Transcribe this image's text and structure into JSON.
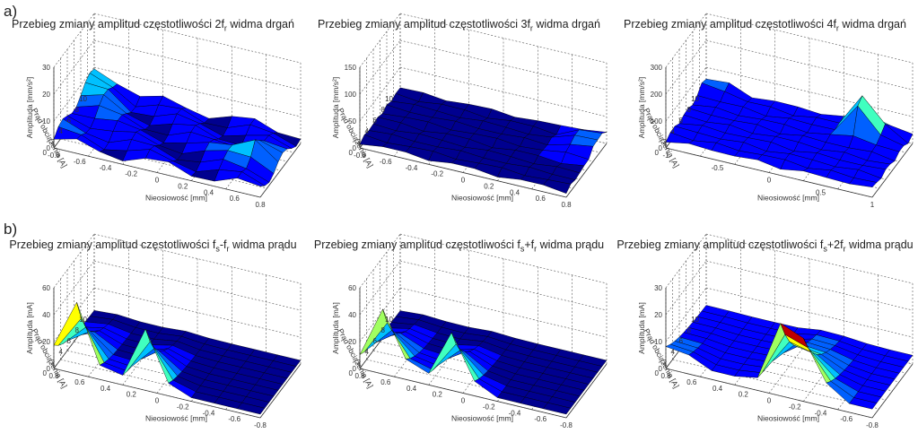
{
  "section_labels": {
    "a": "a)",
    "b": "b)"
  },
  "panels": [
    {
      "row": "a",
      "title_pre": "Przebieg zmiany amplitud częstotliwości 2f",
      "title_sub": "r",
      "title_post": " widma drgań",
      "zlabel": "Amplituda [mm/s²]",
      "xlabel": "Nieosiowość [mm]",
      "ylabel": "Prąd obciążenia [A]",
      "zticks": [
        "0",
        "10",
        "20",
        "30"
      ],
      "xticks": [
        "-0.8",
        "-0.6",
        "-0.4",
        "-0.2",
        "0",
        "0.2",
        "0.4",
        "0.6",
        "0.8"
      ],
      "yticks": [
        "0",
        "2",
        "4",
        "6",
        "8",
        "10"
      ]
    },
    {
      "row": "a",
      "title_pre": "Przebieg zmiany amplitud częstotliwości 3f",
      "title_sub": "r",
      "title_post": " widma drgań",
      "zlabel": "Amplituda [mm/s²]",
      "xlabel": "Nieosiowość [mm]",
      "ylabel": "Prąd obciążenia [A]",
      "zticks": [
        "0",
        "50",
        "100",
        "150"
      ],
      "xticks": [
        "-0.8",
        "-0.6",
        "-0.4",
        "-0.2",
        "0",
        "0.2",
        "0.4",
        "0.6",
        "0.8"
      ],
      "yticks": [
        "0",
        "2",
        "4",
        "6",
        "8",
        "10"
      ]
    },
    {
      "row": "a",
      "title_pre": "Przebieg zmiany amplitud częstotliwości 4f",
      "title_sub": "r",
      "title_post": " widma drgań",
      "zlabel": "Amplituda [mm/s²]",
      "xlabel": "Nieosiowość [mm]",
      "ylabel": "Prąd obciążenia [A]",
      "zticks": [
        "0",
        "100",
        "200",
        "300"
      ],
      "xticks": [
        "-1",
        "-0.5",
        "0",
        "0.5",
        "1"
      ],
      "yticks": [
        "0",
        "2",
        "4",
        "6",
        "8",
        "10"
      ]
    },
    {
      "row": "b",
      "title_pre": "Przebieg zmiany amplitud częstotliwości f",
      "title_sub": "s",
      "title_post": "-f",
      "title_sub2": "r",
      "title_post2": " widma prądu",
      "zlabel": "Amplituda [mA]",
      "xlabel": "Nieosiowość [mm]",
      "ylabel": "Prąd obciążenia [A]",
      "zticks": [
        "0",
        "20",
        "40",
        "60"
      ],
      "xticks": [
        "0.8",
        "0.6",
        "0.4",
        "0.2",
        "0",
        "-0.2",
        "-0.4",
        "-0.6",
        "-0.8"
      ],
      "yticks": [
        "0",
        "2",
        "4",
        "6",
        "8",
        "10"
      ]
    },
    {
      "row": "b",
      "title_pre": "Przebieg zmiany amplitud częstotliwości f",
      "title_sub": "s",
      "title_post": "+f",
      "title_sub2": "r",
      "title_post2": " widma prądu",
      "zlabel": "Amplituda [mA]",
      "xlabel": "Nieosiowość [mm]",
      "ylabel": "Prąd obciążenia [A]",
      "zticks": [
        "0",
        "20",
        "40",
        "60"
      ],
      "xticks": [
        "0.8",
        "0.6",
        "0.4",
        "0.2",
        "0",
        "-0.2",
        "-0.4",
        "-0.6",
        "-0.8"
      ],
      "yticks": [
        "0",
        "2",
        "4",
        "6",
        "8",
        "10"
      ]
    },
    {
      "row": "b",
      "title_pre": "Przebieg zmiany amplitud częstotliwości f",
      "title_sub": "s",
      "title_post": "+2f",
      "title_sub2": "r",
      "title_post2": " widma prądu",
      "zlabel": "Amplituda [mA]",
      "xlabel": "Nieosiowość [mm]",
      "ylabel": "Prąd obciążenia [A]",
      "zticks": [
        "0",
        "10",
        "20",
        "30"
      ],
      "xticks": [
        "0.8",
        "0.6",
        "0.4",
        "0.2",
        "0",
        "-0.2",
        "-0.4",
        "-0.6",
        "-0.8"
      ],
      "yticks": [
        "0",
        "2",
        "4",
        "6",
        "8",
        "10"
      ]
    }
  ],
  "colormap": [
    "#00008f",
    "#0000ff",
    "#0060ff",
    "#00c0ff",
    "#40ffbf",
    "#a0ff60",
    "#ffff00",
    "#ffa000",
    "#ff4000",
    "#c00000",
    "#800000"
  ]
}
